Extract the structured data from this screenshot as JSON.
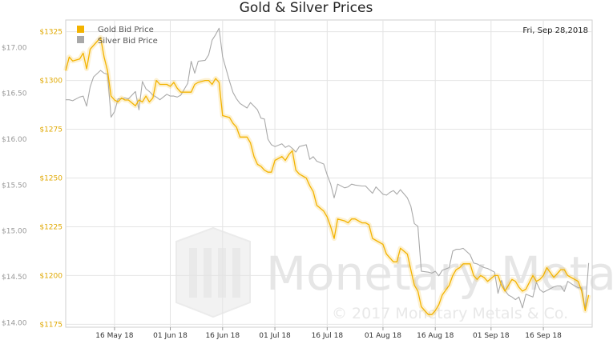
{
  "chart_data": {
    "type": "line",
    "title": "Gold & Silver Prices",
    "date_label": "Fri, Sep 28,2018",
    "watermark": {
      "brand": "Monetary Metals",
      "copyright": "© 2017 Monetary Metals & Co."
    },
    "colors": {
      "gold": "#f3b300",
      "silver": "#a9a9a9",
      "grid": "#e4e4e4"
    },
    "x_ticks": [
      {
        "label": "16 May 18",
        "day": 14
      },
      {
        "label": "01 Jun 18",
        "day": 30
      },
      {
        "label": "16 Jun 18",
        "day": 45
      },
      {
        "label": "01 Jul 18",
        "day": 60
      },
      {
        "label": "16 Jul 18",
        "day": 75
      },
      {
        "label": "01 Aug 18",
        "day": 91
      },
      {
        "label": "16 Aug 18",
        "day": 106
      },
      {
        "label": "01 Sep 18",
        "day": 122
      },
      {
        "label": "16 Sep 18",
        "day": 137
      }
    ],
    "x_range": [
      0,
      151
    ],
    "silver_axis": {
      "range": [
        13.95,
        17.3
      ],
      "ticks": [
        {
          "label": "$14.00",
          "value": 14.0
        },
        {
          "label": "$14.50",
          "value": 14.5
        },
        {
          "label": "$15.00",
          "value": 15.0
        },
        {
          "label": "$15.50",
          "value": 15.5
        },
        {
          "label": "$16.00",
          "value": 16.0
        },
        {
          "label": "$16.50",
          "value": 16.5
        },
        {
          "label": "$17.00",
          "value": 17.0
        }
      ]
    },
    "gold_axis": {
      "range": [
        1173.5,
        1331
      ],
      "ticks": [
        {
          "label": "$1175",
          "value": 1175
        },
        {
          "label": "$1200",
          "value": 1200
        },
        {
          "label": "$1225",
          "value": 1225
        },
        {
          "label": "$1250",
          "value": 1250
        },
        {
          "label": "$1275",
          "value": 1275
        },
        {
          "label": "$1300",
          "value": 1300
        },
        {
          "label": "$1325",
          "value": 1325
        }
      ]
    },
    "series": [
      {
        "name": "Gold Bid Price",
        "axis": "gold",
        "points": [
          [
            0,
            1305
          ],
          [
            1,
            1312
          ],
          [
            2,
            1310
          ],
          [
            4,
            1311
          ],
          [
            5,
            1314
          ],
          [
            6,
            1306
          ],
          [
            7,
            1316
          ],
          [
            8,
            1318
          ],
          [
            10,
            1322
          ],
          [
            11,
            1312
          ],
          [
            12,
            1305
          ],
          [
            13,
            1292
          ],
          [
            14,
            1290
          ],
          [
            15,
            1289
          ],
          [
            16,
            1291
          ],
          [
            17,
            1290
          ],
          [
            18,
            1290
          ],
          [
            20,
            1287
          ],
          [
            21,
            1290
          ],
          [
            22,
            1289
          ],
          [
            23,
            1292
          ],
          [
            24,
            1289
          ],
          [
            25,
            1291
          ],
          [
            26,
            1300
          ],
          [
            27,
            1298
          ],
          [
            29,
            1298
          ],
          [
            30,
            1297
          ],
          [
            31,
            1299
          ],
          [
            32,
            1296
          ],
          [
            33,
            1294
          ],
          [
            35,
            1294
          ],
          [
            36,
            1294
          ],
          [
            37,
            1298
          ],
          [
            38,
            1299
          ],
          [
            40,
            1300
          ],
          [
            41,
            1300
          ],
          [
            42,
            1298
          ],
          [
            43,
            1301
          ],
          [
            44,
            1299
          ],
          [
            45,
            1282
          ],
          [
            47,
            1281
          ],
          [
            48,
            1278
          ],
          [
            49,
            1276
          ],
          [
            50,
            1271
          ],
          [
            52,
            1271
          ],
          [
            53,
            1268
          ],
          [
            54,
            1261
          ],
          [
            55,
            1257
          ],
          [
            56,
            1256
          ],
          [
            57,
            1254
          ],
          [
            58,
            1253
          ],
          [
            59,
            1253
          ],
          [
            60,
            1259
          ],
          [
            62,
            1261
          ],
          [
            63,
            1259
          ],
          [
            64,
            1262
          ],
          [
            65,
            1264
          ],
          [
            66,
            1254
          ],
          [
            67,
            1252
          ],
          [
            69,
            1250
          ],
          [
            70,
            1246
          ],
          [
            71,
            1243
          ],
          [
            72,
            1236
          ],
          [
            74,
            1233
          ],
          [
            75,
            1230
          ],
          [
            76,
            1225
          ],
          [
            77,
            1219
          ],
          [
            78,
            1229
          ],
          [
            80,
            1228
          ],
          [
            81,
            1227
          ],
          [
            82,
            1229
          ],
          [
            83,
            1229
          ],
          [
            85,
            1227
          ],
          [
            86,
            1227
          ],
          [
            87,
            1226
          ],
          [
            88,
            1219
          ],
          [
            89,
            1218
          ],
          [
            91,
            1216
          ],
          [
            92,
            1211
          ],
          [
            93,
            1209
          ],
          [
            94,
            1207
          ],
          [
            95,
            1207
          ],
          [
            96,
            1214
          ],
          [
            98,
            1211
          ],
          [
            99,
            1203
          ],
          [
            100,
            1195
          ],
          [
            101,
            1192
          ],
          [
            102,
            1184
          ],
          [
            104,
            1180
          ],
          [
            105,
            1180
          ],
          [
            106,
            1182
          ],
          [
            107,
            1185
          ],
          [
            108,
            1190
          ],
          [
            110,
            1195
          ],
          [
            111,
            1200
          ],
          [
            112,
            1203
          ],
          [
            113,
            1204
          ],
          [
            114,
            1206
          ],
          [
            116,
            1206
          ],
          [
            117,
            1200
          ],
          [
            118,
            1198
          ],
          [
            119,
            1200
          ],
          [
            120,
            1199
          ],
          [
            121,
            1197
          ],
          [
            123,
            1200
          ],
          [
            124,
            1200
          ],
          [
            125,
            1195
          ],
          [
            126,
            1192
          ],
          [
            127,
            1195
          ],
          [
            128,
            1198
          ],
          [
            129,
            1197
          ],
          [
            130,
            1194
          ],
          [
            131,
            1192
          ],
          [
            132,
            1193
          ],
          [
            134,
            1200
          ],
          [
            135,
            1197
          ],
          [
            136,
            1198
          ],
          [
            137,
            1200
          ],
          [
            138,
            1204
          ],
          [
            140,
            1199
          ],
          [
            141,
            1201
          ],
          [
            142,
            1203
          ],
          [
            143,
            1203
          ],
          [
            144,
            1200
          ],
          [
            146,
            1198
          ],
          [
            147,
            1197
          ],
          [
            148,
            1192
          ],
          [
            149,
            1182
          ],
          [
            150,
            1190
          ]
        ]
      },
      {
        "name": "Silver Bid Price",
        "axis": "silver",
        "points": [
          [
            0,
            16.43
          ],
          [
            1,
            16.43
          ],
          [
            2,
            16.42
          ],
          [
            4,
            16.46
          ],
          [
            5,
            16.47
          ],
          [
            6,
            16.36
          ],
          [
            7,
            16.57
          ],
          [
            8,
            16.68
          ],
          [
            10,
            16.75
          ],
          [
            11,
            16.72
          ],
          [
            12,
            16.71
          ],
          [
            13,
            16.24
          ],
          [
            14,
            16.3
          ],
          [
            15,
            16.44
          ],
          [
            16,
            16.44
          ],
          [
            17,
            16.45
          ],
          [
            18,
            16.44
          ],
          [
            20,
            16.52
          ],
          [
            21,
            16.32
          ],
          [
            22,
            16.63
          ],
          [
            23,
            16.55
          ],
          [
            24,
            16.52
          ],
          [
            25,
            16.48
          ],
          [
            26,
            16.46
          ],
          [
            27,
            16.43
          ],
          [
            29,
            16.49
          ],
          [
            30,
            16.47
          ],
          [
            31,
            16.47
          ],
          [
            32,
            16.46
          ],
          [
            33,
            16.48
          ],
          [
            35,
            16.61
          ],
          [
            36,
            16.85
          ],
          [
            37,
            16.72
          ],
          [
            38,
            16.85
          ],
          [
            40,
            16.86
          ],
          [
            41,
            16.92
          ],
          [
            42,
            17.08
          ],
          [
            43,
            17.14
          ],
          [
            44,
            17.21
          ],
          [
            45,
            16.9
          ],
          [
            47,
            16.63
          ],
          [
            48,
            16.51
          ],
          [
            49,
            16.44
          ],
          [
            50,
            16.39
          ],
          [
            52,
            16.34
          ],
          [
            53,
            16.4
          ],
          [
            54,
            16.36
          ],
          [
            55,
            16.32
          ],
          [
            56,
            16.23
          ],
          [
            57,
            16.22
          ],
          [
            58,
            16.0
          ],
          [
            59,
            15.94
          ],
          [
            60,
            15.92
          ],
          [
            62,
            15.95
          ],
          [
            63,
            15.91
          ],
          [
            64,
            15.93
          ],
          [
            65,
            15.9
          ],
          [
            66,
            15.86
          ],
          [
            67,
            15.92
          ],
          [
            69,
            15.94
          ],
          [
            70,
            15.78
          ],
          [
            71,
            15.81
          ],
          [
            72,
            15.76
          ],
          [
            74,
            15.73
          ],
          [
            75,
            15.61
          ],
          [
            76,
            15.51
          ],
          [
            77,
            15.36
          ],
          [
            78,
            15.51
          ],
          [
            80,
            15.47
          ],
          [
            81,
            15.48
          ],
          [
            82,
            15.51
          ],
          [
            83,
            15.5
          ],
          [
            85,
            15.49
          ],
          [
            86,
            15.49
          ],
          [
            87,
            15.45
          ],
          [
            88,
            15.41
          ],
          [
            89,
            15.48
          ],
          [
            91,
            15.4
          ],
          [
            92,
            15.39
          ],
          [
            93,
            15.42
          ],
          [
            94,
            15.44
          ],
          [
            95,
            15.4
          ],
          [
            96,
            15.45
          ],
          [
            98,
            15.36
          ],
          [
            99,
            15.27
          ],
          [
            100,
            15.08
          ],
          [
            101,
            15.05
          ],
          [
            102,
            14.56
          ],
          [
            104,
            14.55
          ],
          [
            105,
            14.54
          ],
          [
            106,
            14.56
          ],
          [
            107,
            14.51
          ],
          [
            108,
            14.57
          ],
          [
            110,
            14.6
          ],
          [
            111,
            14.78
          ],
          [
            112,
            14.8
          ],
          [
            113,
            14.8
          ],
          [
            114,
            14.81
          ],
          [
            116,
            14.74
          ],
          [
            117,
            14.65
          ],
          [
            118,
            14.64
          ],
          [
            119,
            14.62
          ],
          [
            120,
            14.6
          ],
          [
            121,
            14.59
          ],
          [
            123,
            14.55
          ],
          [
            124,
            14.32
          ],
          [
            125,
            14.46
          ],
          [
            126,
            14.35
          ],
          [
            127,
            14.3
          ],
          [
            128,
            14.28
          ],
          [
            129,
            14.25
          ],
          [
            130,
            14.28
          ],
          [
            131,
            14.16
          ],
          [
            132,
            14.31
          ],
          [
            134,
            14.28
          ],
          [
            135,
            14.44
          ],
          [
            136,
            14.36
          ],
          [
            137,
            14.33
          ],
          [
            138,
            14.35
          ],
          [
            140,
            14.39
          ],
          [
            141,
            14.4
          ],
          [
            142,
            14.4
          ],
          [
            143,
            14.34
          ],
          [
            144,
            14.45
          ],
          [
            146,
            14.4
          ],
          [
            147,
            14.38
          ],
          [
            148,
            14.38
          ],
          [
            149,
            14.15
          ],
          [
            150,
            14.65
          ]
        ]
      }
    ]
  }
}
